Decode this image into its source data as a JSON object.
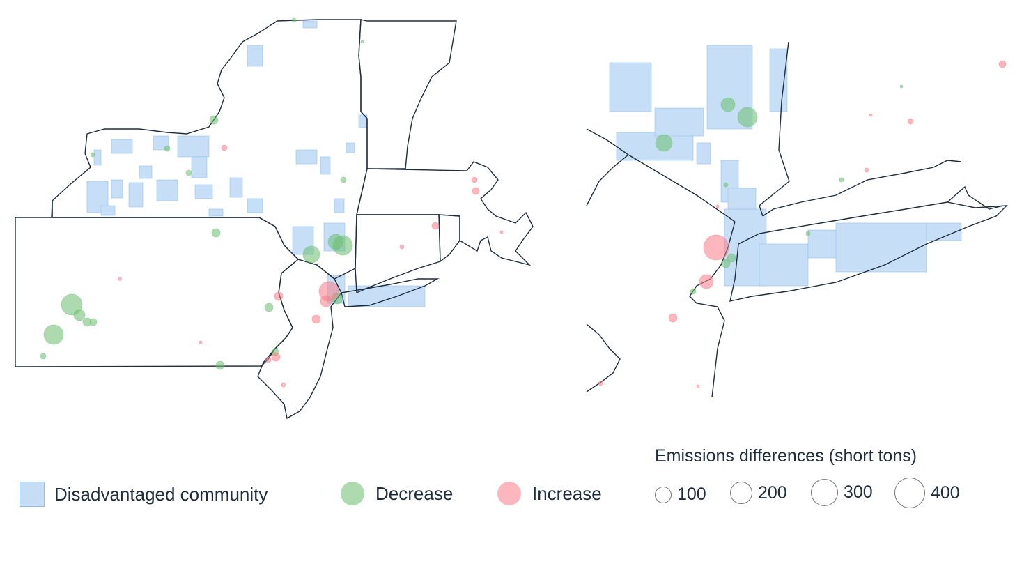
{
  "legend": {
    "dac_label": "Disadvantaged community",
    "decrease_label": "Decrease",
    "increase_label": "Increase",
    "size_title": "Emissions differences (short tons)",
    "sizes": [
      "100",
      "200",
      "300",
      "400"
    ]
  },
  "colors": {
    "dac_fill": "#c5def6",
    "decrease": "#69bd6e",
    "increase": "#f87c86",
    "border": "#1f2d3d"
  },
  "panels": [
    {
      "name": "regional-map",
      "description_visible": false
    },
    {
      "name": "nyc-inset-map",
      "description_visible": false
    }
  ]
}
